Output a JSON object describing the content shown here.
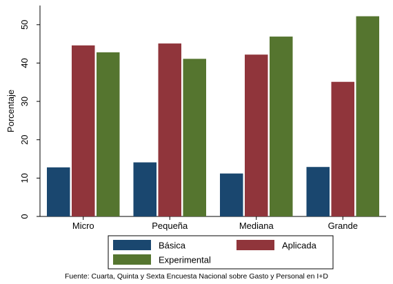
{
  "chart_data": {
    "type": "bar",
    "categories": [
      "Micro",
      "Pequeña",
      "Mediana",
      "Grande"
    ],
    "series": [
      {
        "name": "Básica",
        "color": "#1a476f",
        "values": [
          12.8,
          14.1,
          11.2,
          12.9
        ]
      },
      {
        "name": "Aplicada",
        "color": "#90353b",
        "values": [
          44.6,
          45.1,
          42.2,
          35.1
        ]
      },
      {
        "name": "Experimental",
        "color": "#55752f",
        "values": [
          42.8,
          41.1,
          46.9,
          52.2
        ]
      }
    ],
    "title": "",
    "xlabel": "",
    "ylabel": "Porcentaje",
    "ylim": [
      0,
      55
    ],
    "yticks": [
      0,
      10,
      20,
      30,
      40,
      50
    ],
    "grid": false,
    "legend_position": "bottom",
    "note": "Fuente: Cuarta, Quinta y Sexta Encuesta Nacional sobre Gasto y Personal en I+D"
  }
}
